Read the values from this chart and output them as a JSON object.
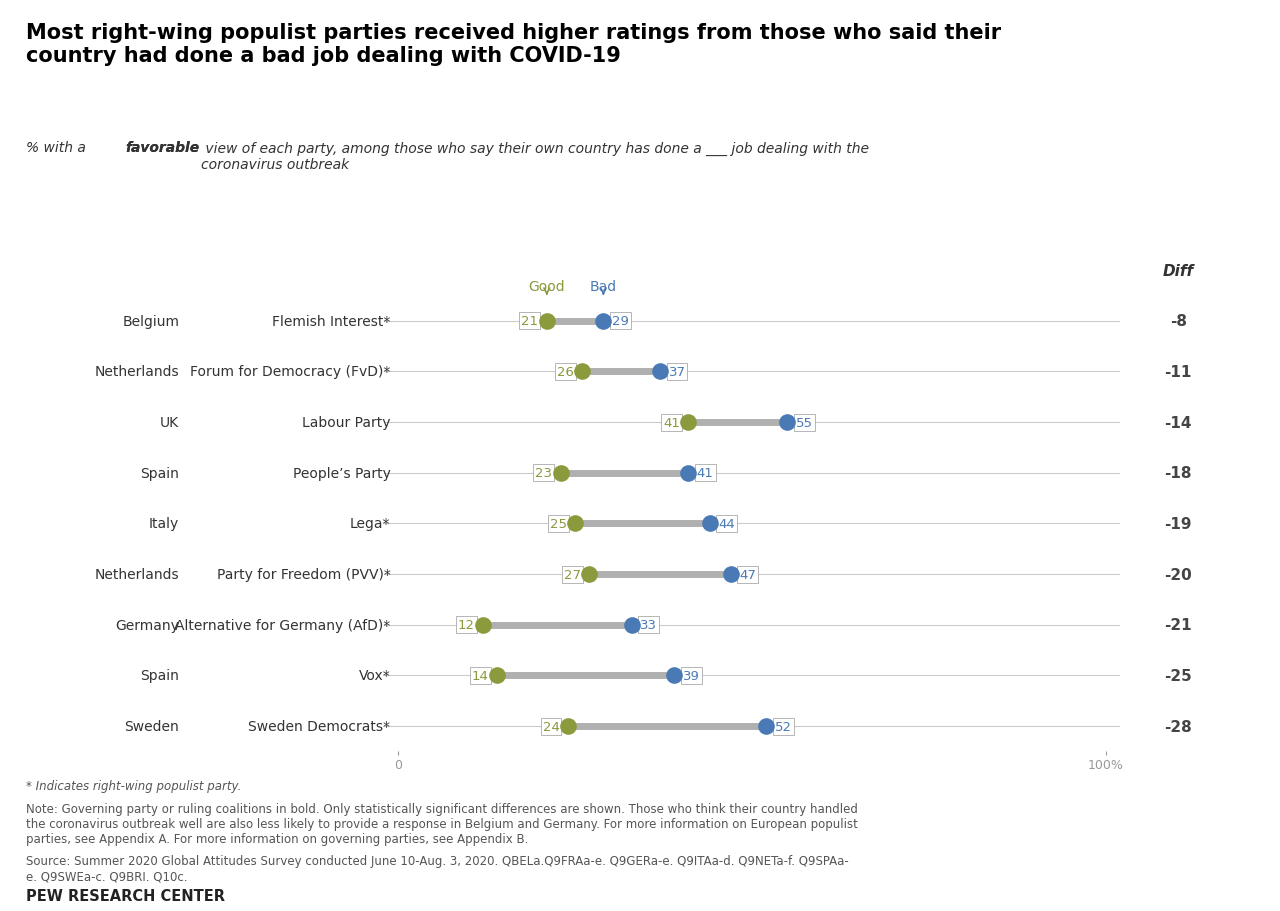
{
  "title": "Most right-wing populist parties received higher ratings from those who said their\ncountry had done a bad job dealing with COVID-19",
  "subtitle_part1": "% with a ",
  "subtitle_favorable": "favorable",
  "subtitle_part2": " view of each party, among those who say their own country has done a ___ job dealing with the\ncoronavirus outbreak",
  "countries": [
    "Belgium",
    "Netherlands",
    "UK",
    "Spain",
    "Italy",
    "Netherlands",
    "Germany",
    "Spain",
    "Sweden"
  ],
  "parties": [
    "Flemish Interest*",
    "Forum for Democracy (FvD)*",
    "Labour Party",
    "People’s Party",
    "Lega*",
    "Party for Freedom (PVV)*",
    "Alternative for Germany (AfD)*",
    "Vox*",
    "Sweden Democrats*"
  ],
  "good_values": [
    21,
    26,
    41,
    23,
    25,
    27,
    12,
    14,
    24
  ],
  "bad_values": [
    29,
    37,
    55,
    41,
    44,
    47,
    33,
    39,
    52
  ],
  "diff_values": [
    "-8",
    "-11",
    "-14",
    "-18",
    "-19",
    "-20",
    "-21",
    "-25",
    "-28"
  ],
  "good_color": "#8a9a3c",
  "bad_color": "#4a7ab5",
  "connector_color": "#b0b0b0",
  "axis_max": 100,
  "footer_note": "* Indicates right-wing populist party.",
  "footer_note2": "Note: Governing party or ruling coalitions in bold. Only statistically significant differences are shown. Those who think their country handled\nthe coronavirus outbreak well are also less likely to provide a response in Belgium and Germany. For more information on European populist\nparties, see Appendix A. For more information on governing parties, see Appendix B.",
  "footer_source": "Source: Summer 2020 Global Attitudes Survey conducted June 10-Aug. 3, 2020. QBELa.Q9FRAa-e. Q9GERa-e. Q9ITAa-d. Q9NETa-f. Q9SPAa-\ne. Q9SWEa-c. Q9BRI. Q10c.",
  "footer_pew": "PEW RESEARCH CENTER",
  "diff_label": "Diff",
  "good_label": "Good",
  "bad_label": "Bad",
  "background_color": "#ffffff",
  "diff_bg_color": "#e8e8d8"
}
